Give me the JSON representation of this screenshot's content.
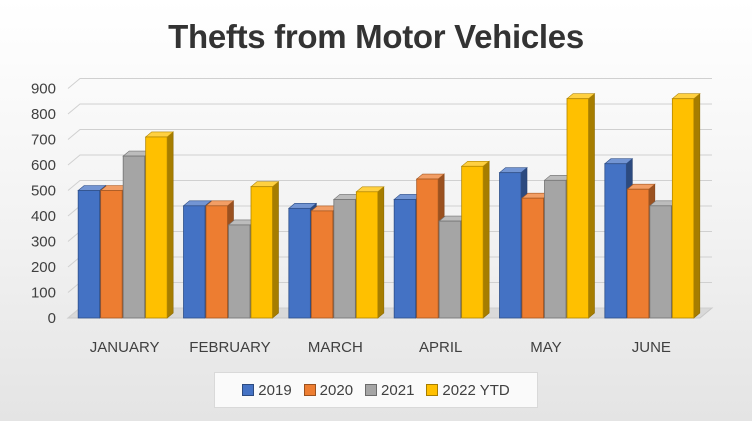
{
  "chart_data": {
    "type": "bar",
    "title": "Thefts from Motor Vehicles",
    "categories": [
      "JANUARY",
      "FEBRUARY",
      "MARCH",
      "APRIL",
      "MAY",
      "JUNE"
    ],
    "series": [
      {
        "name": "2019",
        "color": "#4472C4",
        "values": [
          500,
          440,
          430,
          465,
          570,
          605
        ]
      },
      {
        "name": "2020",
        "color": "#ED7D31",
        "values": [
          500,
          440,
          420,
          545,
          470,
          505
        ]
      },
      {
        "name": "2021",
        "color": "#A5A5A5",
        "values": [
          635,
          365,
          465,
          380,
          540,
          440
        ]
      },
      {
        "name": "2022 YTD",
        "color": "#FFC000",
        "values": [
          710,
          515,
          495,
          595,
          860,
          860
        ]
      }
    ],
    "ylim": [
      0,
      900
    ],
    "yticks": [
      0,
      100,
      200,
      300,
      400,
      500,
      600,
      700,
      800,
      900
    ],
    "grid": true,
    "legend": "bottom",
    "style": "3d-clustered-column"
  }
}
